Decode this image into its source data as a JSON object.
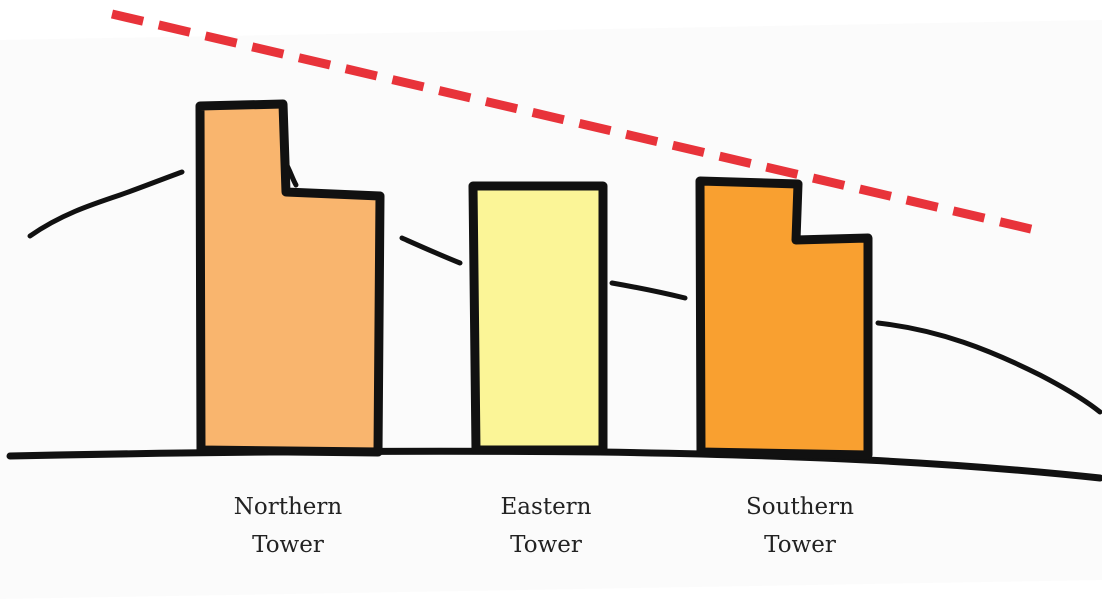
{
  "towers": [
    {
      "label": [
        "Northern",
        "Tower"
      ]
    },
    {
      "label": [
        "Eastern",
        "Tower"
      ]
    },
    {
      "label": [
        "Southern",
        "Tower"
      ]
    }
  ]
}
